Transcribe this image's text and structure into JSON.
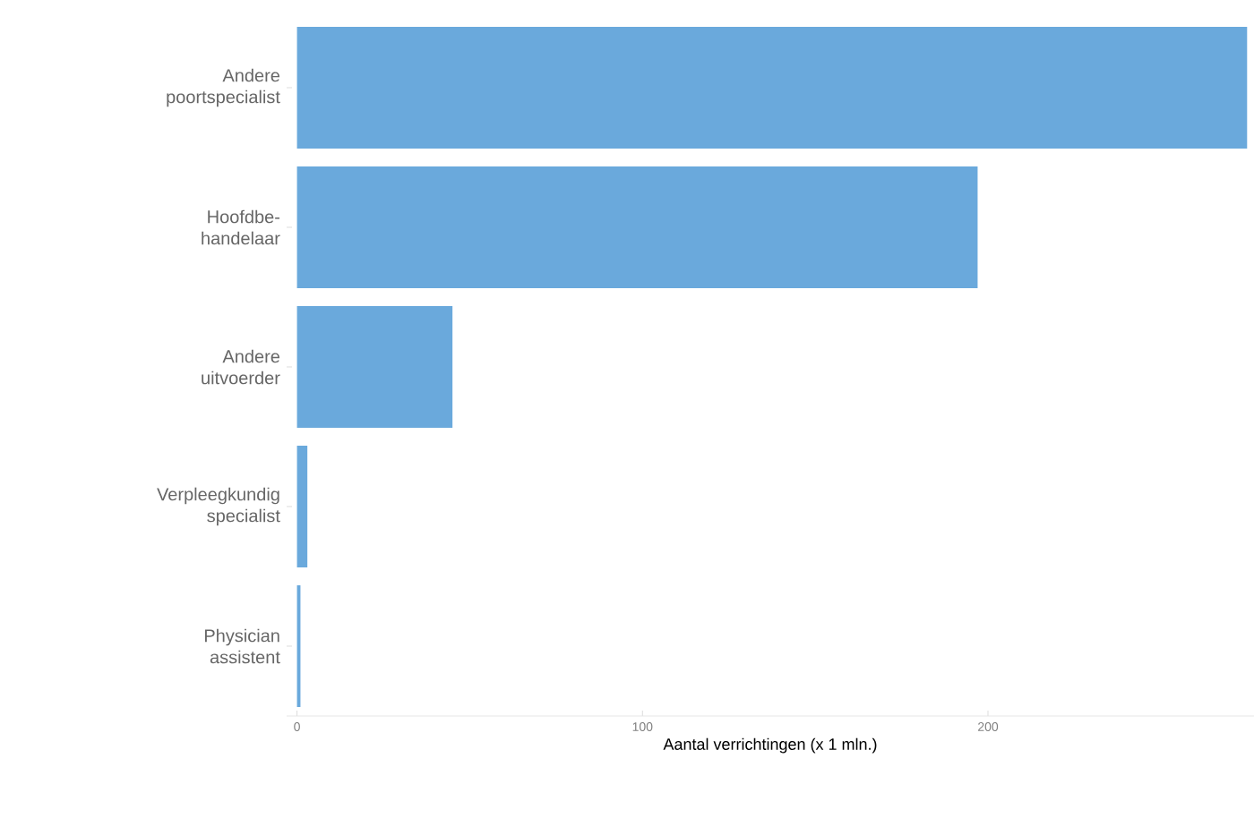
{
  "chart_data": {
    "type": "bar",
    "orientation": "horizontal",
    "xlabel": "Aantal verrichtingen (x 1 mln.)",
    "categories": [
      "Andere poortspecialist",
      "Hoofdbe-handelaar",
      "Andere uitvoerder",
      "Verpleegkundig specialist",
      "Physician assistent"
    ],
    "values": [
      275,
      197,
      45,
      3,
      1
    ],
    "color": "#6aa9dc",
    "xlim": [
      -3,
      277
    ],
    "xticks": [
      0,
      100,
      200
    ]
  }
}
